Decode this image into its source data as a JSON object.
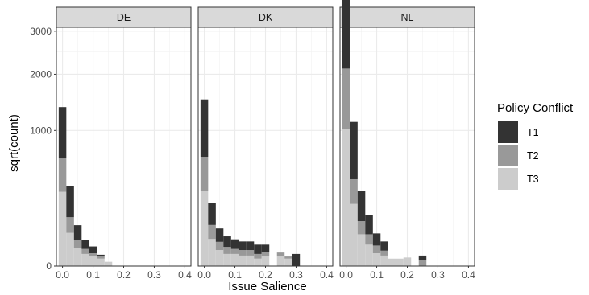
{
  "chart_data": {
    "type": "bar",
    "subtype": "stacked-histogram-faceted",
    "xlabel": "Issue Salience",
    "ylabel": "sqrt(count)",
    "y_scale": "sqrt",
    "xlim": [
      -0.02,
      0.42
    ],
    "ylim": [
      0,
      3100
    ],
    "x_ticks": [
      "0.0",
      "0.1",
      "0.2",
      "0.3",
      "0.4"
    ],
    "y_ticks": [
      "0",
      "1000",
      "2000",
      "3000"
    ],
    "bin_width": 0.025,
    "grid": true,
    "legend": {
      "title": "Policy Conflict",
      "position": "right",
      "entries": [
        "T1",
        "T2",
        "T3"
      ],
      "colors": [
        "#333333",
        "#999999",
        "#cccccc"
      ]
    },
    "facets": [
      {
        "label": "DE",
        "bins": [
          0.0,
          0.025,
          0.05,
          0.075,
          0.1,
          0.125,
          0.15
        ],
        "series": [
          {
            "name": "T3",
            "values": [
              300,
              60,
              18,
              8,
              5,
              3,
              1
            ]
          },
          {
            "name": "T2",
            "values": [
              330,
              70,
              18,
              8,
              4,
              2,
              0
            ]
          },
          {
            "name": "T1",
            "values": [
              745,
              220,
              55,
              20,
              12,
              2,
              0
            ]
          }
        ]
      },
      {
        "label": "DK",
        "bins": [
          0.0,
          0.025,
          0.05,
          0.075,
          0.1,
          0.125,
          0.15,
          0.175,
          0.2,
          0.225,
          0.25,
          0.275,
          0.3
        ],
        "series": [
          {
            "name": "T3",
            "values": [
              310,
              40,
              14,
              8,
              8,
              6,
              6,
              3,
              5,
              0,
              5,
              3,
              0
            ]
          },
          {
            "name": "T2",
            "values": [
              340,
              52,
              18,
              12,
              8,
              8,
              8,
              5,
              6,
              0,
              5,
              2,
              0
            ]
          },
          {
            "name": "T1",
            "values": [
              860,
              125,
              45,
              28,
              23,
              19,
              19,
              17,
              14,
              0,
              0,
              0,
              8
            ]
          }
        ]
      },
      {
        "label": "NL",
        "bins": [
          0.0,
          0.025,
          0.05,
          0.075,
          0.1,
          0.125,
          0.15,
          0.175,
          0.2,
          0.225,
          0.25
        ],
        "series": [
          {
            "name": "T3",
            "values": [
              1020,
              210,
              55,
              25,
              9,
              6,
              3,
              3,
              4,
              0,
              0
            ]
          },
          {
            "name": "T2",
            "values": [
              1100,
              200,
              55,
              30,
              14,
              7,
              0,
              0,
              0,
              0,
              2
            ]
          },
          {
            "name": "T1",
            "values": [
              7480,
              720,
              200,
              85,
              35,
              20,
              0,
              0,
              0,
              0,
              4
            ]
          }
        ]
      }
    ]
  }
}
